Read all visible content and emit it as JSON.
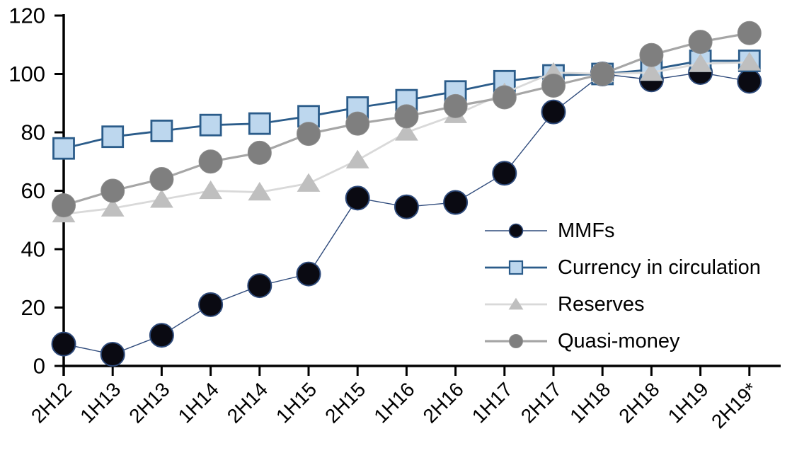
{
  "chart_data": {
    "type": "line",
    "title": "",
    "xlabel": "",
    "ylabel": "",
    "ylim": [
      0,
      120
    ],
    "yticks": [
      0,
      20,
      40,
      60,
      80,
      100,
      120
    ],
    "grid": false,
    "legend_position": "inside-right",
    "axis_color": "#000000",
    "background_color": "#ffffff",
    "categories": [
      "2H12",
      "1H13",
      "2H13",
      "1H14",
      "2H14",
      "1H15",
      "2H15",
      "1H16",
      "2H16",
      "1H17",
      "2H17",
      "1H18",
      "2H18",
      "1H19",
      "2H19*"
    ],
    "series": [
      {
        "name": "MMFs",
        "marker": "circle",
        "marker_fill": "#0a0a12",
        "marker_stroke": "#2e4a7a",
        "line_color": "#2f4b7c",
        "line_width": 1.4,
        "values": [
          7.5,
          4,
          10.5,
          21,
          27.5,
          31.5,
          57.5,
          54.5,
          56,
          66,
          87,
          100,
          98,
          100.5,
          97.5
        ]
      },
      {
        "name": "Currency in circulation",
        "marker": "square",
        "marker_fill": "#bdd7ee",
        "marker_stroke": "#2b5c8a",
        "line_color": "#2b5c8a",
        "line_width": 2.8,
        "values": [
          74.5,
          78.5,
          80.5,
          82.5,
          83,
          85.5,
          88.5,
          91,
          94,
          97.5,
          99.5,
          100,
          101.5,
          104.5,
          104.5
        ]
      },
      {
        "name": "Reserves",
        "marker": "triangle",
        "marker_fill": "#bfbfbf",
        "marker_stroke": "#bfbfbf",
        "line_color": "#d9d9d9",
        "line_width": 2.8,
        "values": [
          52,
          54,
          57,
          60,
          59.5,
          62.5,
          70.5,
          80,
          86,
          93.5,
          100.5,
          100,
          100.5,
          103.5,
          104
        ]
      },
      {
        "name": "Quasi-money",
        "marker": "circle",
        "marker_fill": "#7f7f7f",
        "marker_stroke": "#8c8c8c",
        "line_color": "#a6a6a6",
        "line_width": 3.2,
        "values": [
          55,
          60,
          64,
          70,
          73,
          79.5,
          83,
          85.5,
          89,
          92,
          96,
          100,
          106.5,
          111,
          114
        ]
      }
    ]
  }
}
